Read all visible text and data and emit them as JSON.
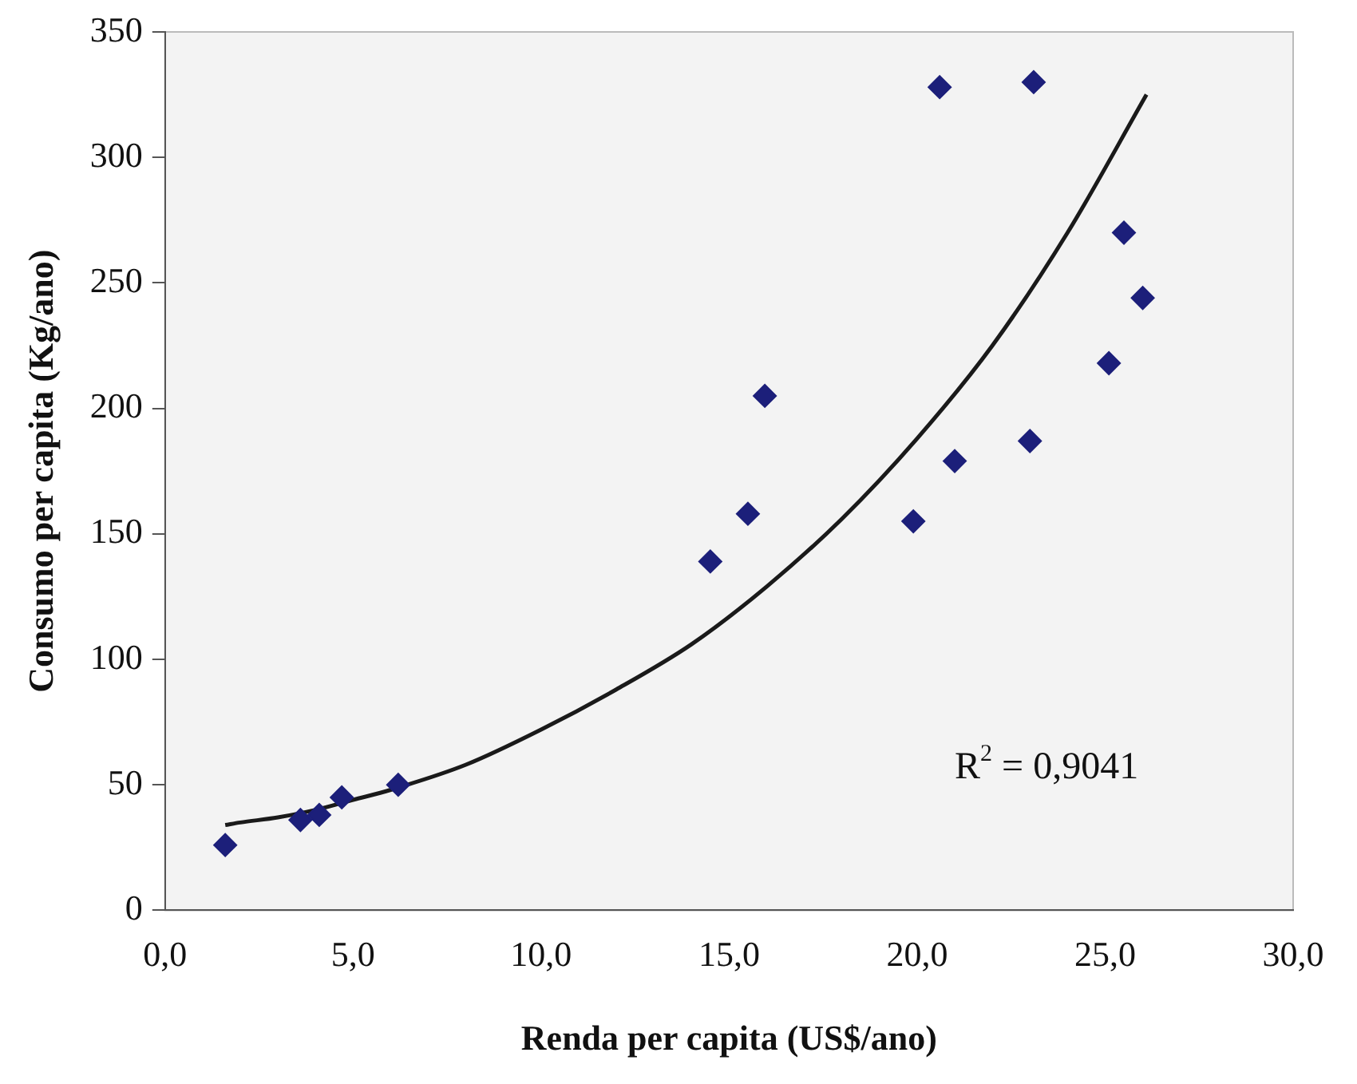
{
  "chart_data": {
    "type": "scatter",
    "xlabel": "Renda per capita (US$/ano)",
    "ylabel": "Consumo per capita (Kg/ano)",
    "xlim": [
      0,
      30
    ],
    "xticks": [
      {
        "value": 0,
        "label": "0,0"
      },
      {
        "value": 5,
        "label": "5,0"
      },
      {
        "value": 10,
        "label": "10,0"
      },
      {
        "value": 15,
        "label": "15,0"
      },
      {
        "value": 20,
        "label": "20,0"
      },
      {
        "value": 25,
        "label": "25,0"
      },
      {
        "value": 30,
        "label": "30,0"
      }
    ],
    "ylim": [
      0,
      350
    ],
    "yticks": [
      0,
      50,
      100,
      150,
      200,
      250,
      300,
      350
    ],
    "grid": false,
    "legend": false,
    "marker": "diamond",
    "series": [
      {
        "type": "scatter",
        "color": "#1c1f7a",
        "x": [
          1.6,
          3.6,
          4.1,
          4.7,
          6.2,
          14.5,
          15.5,
          15.95,
          19.9,
          20.6,
          21.0,
          23.0,
          23.1,
          25.1,
          25.5,
          26.0
        ],
        "values": [
          26,
          36,
          38,
          45,
          50,
          139,
          158,
          205,
          155,
          328,
          179,
          187,
          330,
          218,
          270,
          244
        ]
      },
      {
        "type": "line",
        "color": "#1a1a1a",
        "marker": "none",
        "x": [
          1.6,
          2,
          3,
          4,
          5,
          6,
          8,
          10,
          12,
          14,
          16,
          18,
          20,
          22,
          24,
          26.1
        ],
        "values": [
          34,
          35,
          37,
          40,
          44,
          48,
          58,
          72,
          88,
          106,
          129,
          156,
          188,
          225,
          270,
          325
        ]
      }
    ],
    "annotations": [
      "R$^{2}$ = 0,9041"
    ]
  }
}
